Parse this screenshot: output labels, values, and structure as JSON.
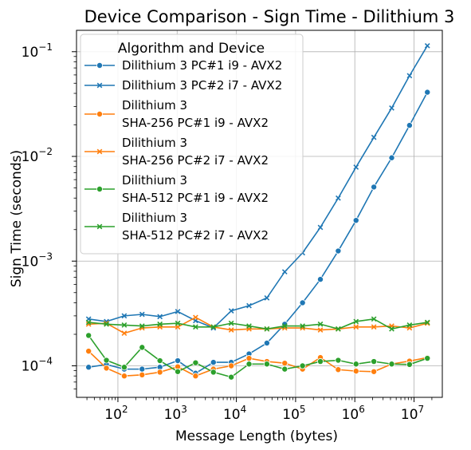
{
  "chart_data": {
    "type": "line",
    "title": "Device Comparison - Sign Time - Dilithium 3",
    "xlabel": "Message Length (bytes)",
    "ylabel": "Sign Time (seconds)",
    "xscale": "log",
    "yscale": "log",
    "xlim": [
      20,
      30000000
    ],
    "ylim": [
      5e-05,
      0.16
    ],
    "grid": true,
    "legend_title": "Algorithm and Device",
    "legend_position": "top-left",
    "x": [
      32,
      64,
      128,
      256,
      512,
      1024,
      2048,
      4096,
      8192,
      16384,
      32768,
      65536,
      131072,
      262144,
      524288,
      1048576,
      2097152,
      4194304,
      8388608,
      16777216
    ],
    "x_ticks": [
      {
        "value": 100,
        "label": "10",
        "exp": "2"
      },
      {
        "value": 1000,
        "label": "10",
        "exp": "3"
      },
      {
        "value": 10000,
        "label": "10",
        "exp": "4"
      },
      {
        "value": 100000,
        "label": "10",
        "exp": "5"
      },
      {
        "value": 1000000,
        "label": "10",
        "exp": "6"
      },
      {
        "value": 10000000,
        "label": "10",
        "exp": "7"
      }
    ],
    "y_ticks": [
      {
        "value": 0.0001,
        "label": "10",
        "exp": "−4"
      },
      {
        "value": 0.001,
        "label": "10",
        "exp": "−3"
      },
      {
        "value": 0.01,
        "label": "10",
        "exp": "−2"
      },
      {
        "value": 0.1,
        "label": "10",
        "exp": "−1"
      }
    ],
    "series": [
      {
        "name": "Dilithium 3 PC#1 i9 - AVX2",
        "color": "#1f77b4",
        "marker": "circle",
        "values": [
          9.7e-05,
          0.000103,
          9.3e-05,
          9.3e-05,
          9.7e-05,
          0.000112,
          8.5e-05,
          0.000108,
          0.000108,
          0.00013,
          0.000165,
          0.00025,
          0.0004,
          0.00067,
          0.00125,
          0.00245,
          0.0051,
          0.0097,
          0.0198,
          0.041
        ]
      },
      {
        "name": "Dilithium 3 PC#2 i7 - AVX2",
        "color": "#1f77b4",
        "marker": "x",
        "values": [
          0.00028,
          0.000265,
          0.0003,
          0.00031,
          0.000295,
          0.00033,
          0.00027,
          0.00023,
          0.000335,
          0.000375,
          0.000445,
          0.00079,
          0.0012,
          0.0021,
          0.004,
          0.0079,
          0.0152,
          0.029,
          0.059,
          0.114
        ]
      },
      {
        "name": "Dilithium 3\nSHA-256 PC#1 i9 - AVX2",
        "color": "#ff7f0e",
        "marker": "circle",
        "values": [
          0.000138,
          9.5e-05,
          8e-05,
          8.2e-05,
          8.7e-05,
          9.8e-05,
          8e-05,
          9.3e-05,
          0.0001,
          0.000118,
          0.00011,
          0.000106,
          9.3e-05,
          0.00012,
          9.2e-05,
          8.9e-05,
          8.8e-05,
          0.000104,
          0.000111,
          0.00012
        ]
      },
      {
        "name": "Dilithium 3\nSHA-256 PC#2 i7 - AVX2",
        "color": "#ff7f0e",
        "marker": "x",
        "values": [
          0.00025,
          0.000255,
          0.000205,
          0.00023,
          0.000235,
          0.000235,
          0.00029,
          0.000235,
          0.00022,
          0.000225,
          0.000225,
          0.00023,
          0.00023,
          0.00022,
          0.000225,
          0.000235,
          0.000235,
          0.00024,
          0.00023,
          0.000255
        ]
      },
      {
        "name": "Dilithium 3\nSHA-512 PC#1 i9 - AVX2",
        "color": "#2ca02c",
        "marker": "circle",
        "values": [
          0.000195,
          0.000113,
          9.7e-05,
          0.00015,
          0.000112,
          8.8e-05,
          0.000107,
          8.7e-05,
          7.8e-05,
          0.000104,
          0.000104,
          9.3e-05,
          0.0001,
          0.00011,
          0.000113,
          0.000104,
          0.00011,
          0.000104,
          0.000103,
          0.000118
        ]
      },
      {
        "name": "Dilithium 3\nSHA-512 PC#2 i7 - AVX2",
        "color": "#2ca02c",
        "marker": "x",
        "values": [
          0.00026,
          0.00025,
          0.000245,
          0.00024,
          0.00025,
          0.000255,
          0.000235,
          0.000235,
          0.000255,
          0.00024,
          0.000225,
          0.00024,
          0.00024,
          0.00025,
          0.000225,
          0.000265,
          0.00028,
          0.000225,
          0.000245,
          0.00026
        ]
      }
    ]
  }
}
